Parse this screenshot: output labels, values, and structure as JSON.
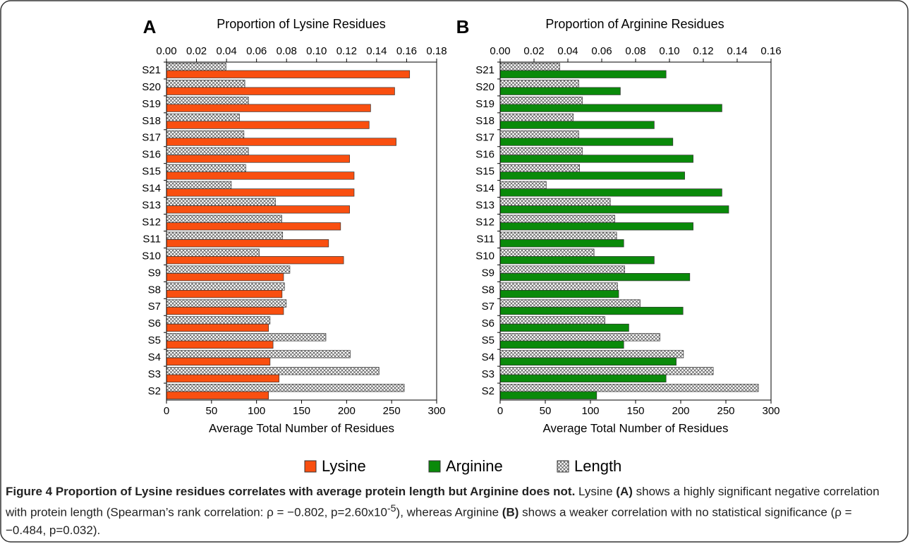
{
  "chart_data": [
    {
      "type": "hbar",
      "panel": "A",
      "title": "Proportion of Lysine Residues",
      "xlabel": "Average Total Number of Residues",
      "categories": [
        "S21",
        "S20",
        "S19",
        "S18",
        "S17",
        "S16",
        "S15",
        "S14",
        "S13",
        "S12",
        "S11",
        "S10",
        "S9",
        "S8",
        "S7",
        "S6",
        "S5",
        "S4",
        "S3",
        "S2"
      ],
      "series": [
        {
          "name": "Lysine",
          "color": "#f94f10",
          "axis": "x2",
          "values": [
            0.162,
            0.152,
            0.136,
            0.135,
            0.153,
            0.122,
            0.125,
            0.125,
            0.122,
            0.116,
            0.108,
            0.118,
            0.078,
            0.077,
            0.078,
            0.068,
            0.071,
            0.069,
            0.075,
            0.068
          ]
        },
        {
          "name": "Length",
          "color": "hatch",
          "axis": "x",
          "values": [
            66,
            87,
            91,
            81,
            86,
            91,
            88,
            72,
            121,
            128,
            129,
            103,
            137,
            131,
            133,
            115,
            177,
            204,
            236,
            264
          ]
        }
      ],
      "xlim": [
        0,
        300
      ],
      "xticks": [
        0,
        50,
        100,
        150,
        200,
        250,
        300
      ],
      "x2lim": [
        0,
        0.18
      ],
      "x2ticks": [
        {
          "value": 0,
          "label": "0.00"
        },
        {
          "value": 0.02,
          "label": "0.02"
        },
        {
          "value": 0.04,
          "label": "0.04"
        },
        {
          "value": 0.06,
          "label": "0.06"
        },
        {
          "value": 0.08,
          "label": "0.08"
        },
        {
          "value": 0.1,
          "label": "0.10"
        },
        {
          "value": 0.12,
          "label": "0.12"
        },
        {
          "value": 0.14,
          "label": "0.14"
        },
        {
          "value": 0.16,
          "label": "0.16"
        },
        {
          "value": 0.18,
          "label": "0.18"
        }
      ]
    },
    {
      "type": "hbar",
      "panel": "B",
      "title": "Proportion of Arginine Residues",
      "xlabel": "Average Total Number of Residues",
      "categories": [
        "S21",
        "S20",
        "S19",
        "S18",
        "S17",
        "S16",
        "S15",
        "S14",
        "S13",
        "S12",
        "S11",
        "S10",
        "S9",
        "S8",
        "S7",
        "S6",
        "S5",
        "S4",
        "S3",
        "S2"
      ],
      "series": [
        {
          "name": "Arginine",
          "color": "#0a8a0a",
          "axis": "x2",
          "values": [
            0.098,
            0.071,
            0.131,
            0.091,
            0.102,
            0.114,
            0.109,
            0.131,
            0.135,
            0.114,
            0.073,
            0.091,
            0.112,
            0.07,
            0.108,
            0.076,
            0.073,
            0.104,
            0.098,
            0.057
          ]
        },
        {
          "color": "hatch",
          "axis": "x",
          "values": [
            66,
            87,
            91,
            81,
            87,
            91,
            88,
            51,
            122,
            127,
            129,
            104,
            138,
            130,
            155,
            116,
            177,
            203,
            236,
            286
          ]
        }
      ],
      "xlim": [
        0,
        300
      ],
      "xticks": [
        0,
        50,
        100,
        150,
        200,
        250,
        300
      ],
      "x2lim": [
        0,
        0.16
      ],
      "x2ticks": [
        {
          "value": 0,
          "label": "0.00"
        },
        {
          "value": 0.02,
          "label": "0.02"
        },
        {
          "value": 0.04,
          "label": "0.04"
        },
        {
          "value": 0.06,
          "label": "0.06"
        },
        {
          "value": 0.08,
          "label": "0.08"
        },
        {
          "value": 0.1,
          "label": "0.10"
        },
        {
          "value": 0.12,
          "label": "0.12"
        },
        {
          "value": 0.14,
          "label": "0.14"
        },
        {
          "value": 0.16,
          "label": "0.16"
        }
      ]
    }
  ],
  "caption": {
    "title": "Figure 4 Proportion of Lysine residues correlates with average protein length but Arginine does not.",
    "t1": " Lysine ",
    "b1": "(A)",
    "t2": " shows a highly significant negative correlation with protein length (Spearman’s rank correlation: ρ = −0.802, p=2.60x10",
    "sup": "-5",
    "t3": "), whereas Arginine ",
    "b2": "(B)",
    "t4": " shows a weaker correlation with no statistical significance (ρ = −0.484, p=0.032)."
  }
}
